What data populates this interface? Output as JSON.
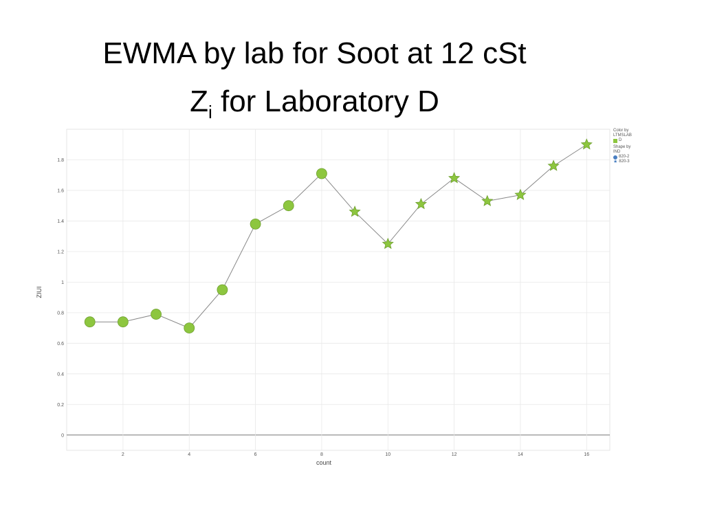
{
  "title_line1": "EWMA by lab for Soot at 12 cSt",
  "title_line2_main": "Z",
  "title_line2_sub": "i",
  "title_line2_rest": " for Laboratory D",
  "legend": {
    "color_title": "Color by LTMSLAB",
    "color_item": "D",
    "shape_title": "Shape by IND",
    "shape_items": [
      "820-2",
      "820-3"
    ]
  },
  "colors": {
    "marker": "#8dc63f",
    "marker_stroke": "#6fa030",
    "line": "#888888"
  },
  "chart_data": {
    "type": "line",
    "xlabel": "count",
    "ylabel": "ZIUI",
    "xlim": [
      0.3,
      16.7
    ],
    "ylim": [
      -0.1,
      2.0
    ],
    "x_ticks": [
      2,
      4,
      6,
      8,
      10,
      12,
      14,
      16
    ],
    "y_ticks": [
      0,
      0.2,
      0.4,
      0.6,
      0.8,
      1,
      1.2,
      1.4,
      1.6,
      1.8
    ],
    "points": [
      {
        "x": 1,
        "y": 0.74,
        "ind": "820-2"
      },
      {
        "x": 2,
        "y": 0.74,
        "ind": "820-2"
      },
      {
        "x": 3,
        "y": 0.79,
        "ind": "820-2"
      },
      {
        "x": 4,
        "y": 0.7,
        "ind": "820-2"
      },
      {
        "x": 5,
        "y": 0.95,
        "ind": "820-2"
      },
      {
        "x": 6,
        "y": 1.38,
        "ind": "820-2"
      },
      {
        "x": 7,
        "y": 1.5,
        "ind": "820-2"
      },
      {
        "x": 8,
        "y": 1.71,
        "ind": "820-2"
      },
      {
        "x": 9,
        "y": 1.46,
        "ind": "820-3"
      },
      {
        "x": 10,
        "y": 1.25,
        "ind": "820-3"
      },
      {
        "x": 11,
        "y": 1.51,
        "ind": "820-3"
      },
      {
        "x": 12,
        "y": 1.68,
        "ind": "820-3"
      },
      {
        "x": 13,
        "y": 1.53,
        "ind": "820-3"
      },
      {
        "x": 14,
        "y": 1.57,
        "ind": "820-3"
      },
      {
        "x": 15,
        "y": 1.76,
        "ind": "820-3"
      },
      {
        "x": 16,
        "y": 1.9,
        "ind": "820-3"
      }
    ]
  }
}
